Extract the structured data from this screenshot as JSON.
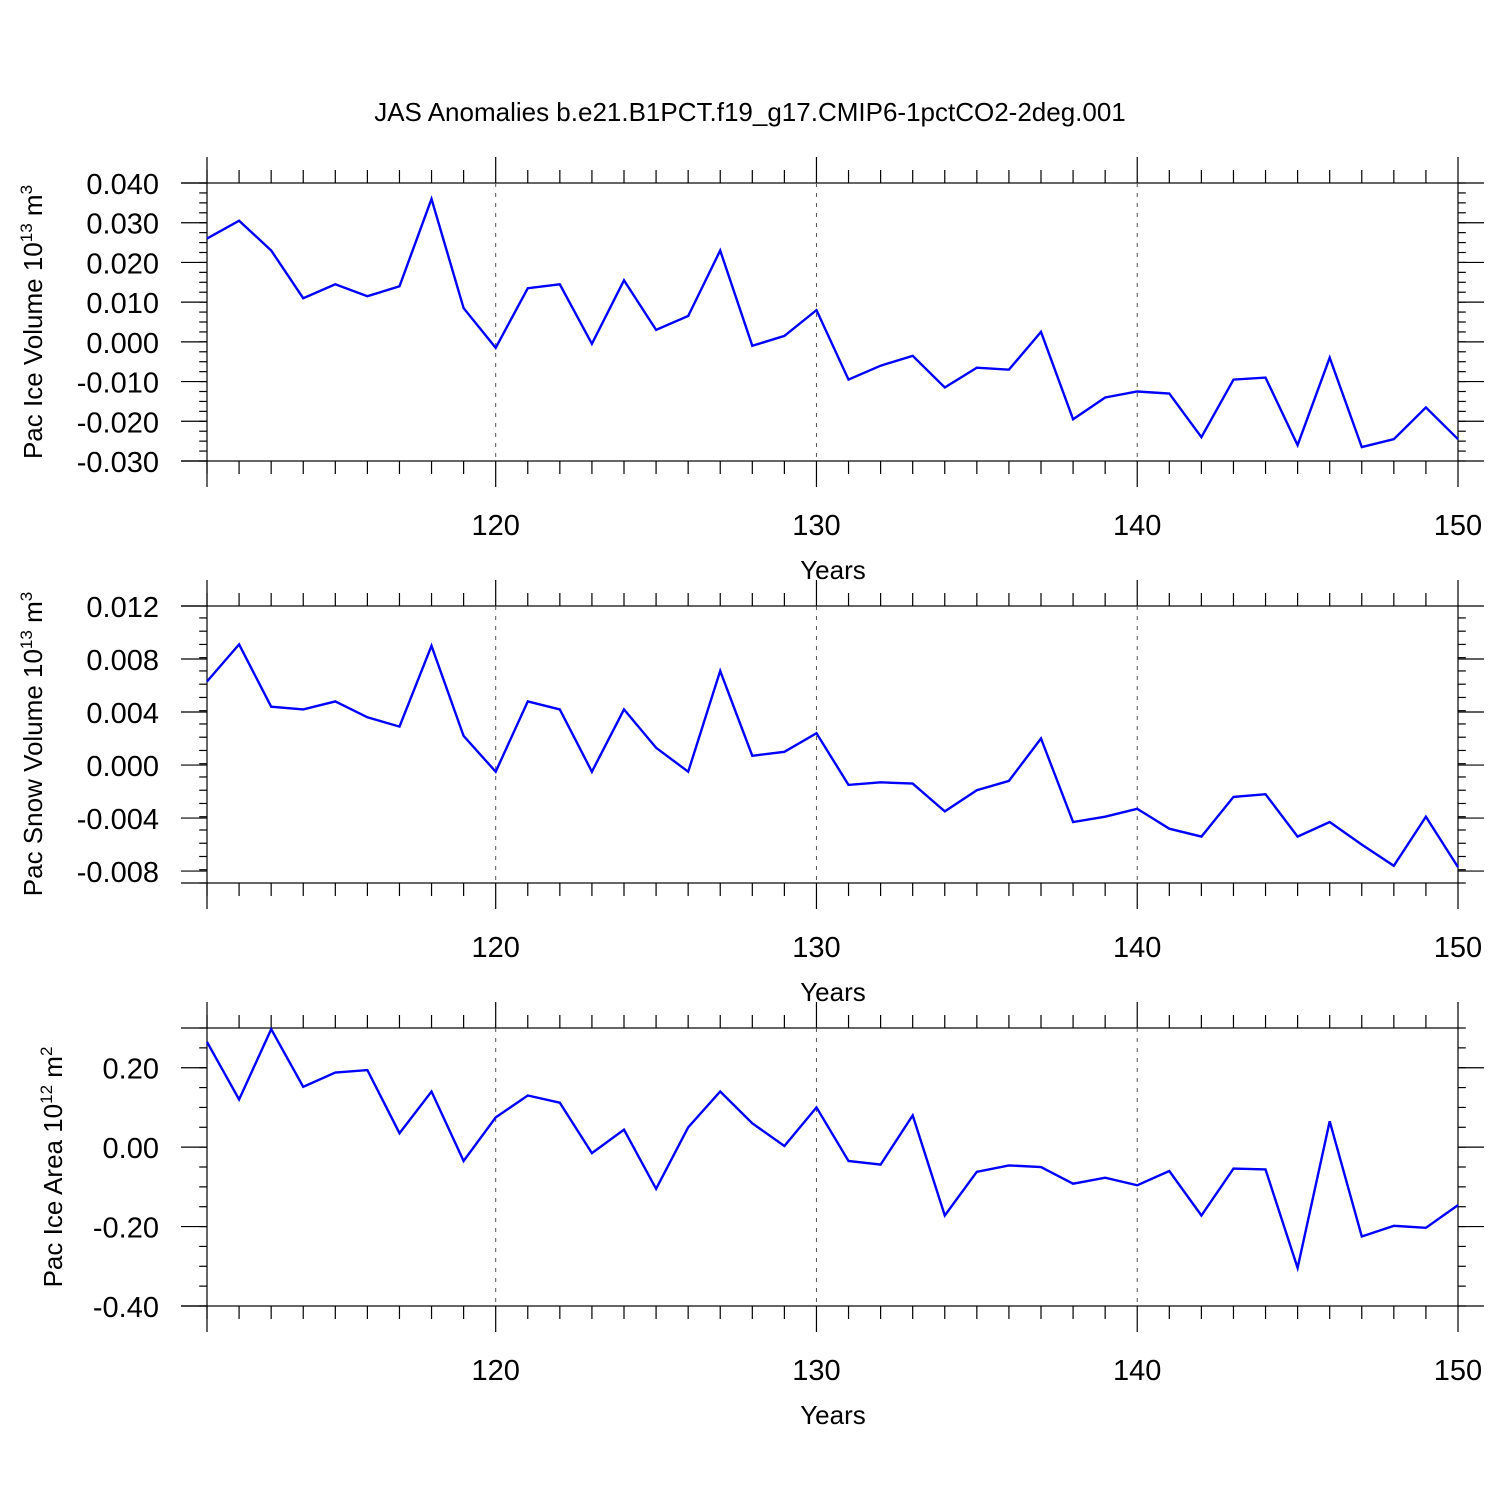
{
  "title": "JAS Anomalies b.e21.B1PCT.f19_g17.CMIP6-1pctCO2-2deg.001",
  "colors": {
    "series": "#0000ff",
    "axes": "#000000",
    "grid": "#555555"
  },
  "chart_data": [
    {
      "type": "line",
      "ylabel": "Pac Ice Volume 10",
      "ylabel_exp": "13",
      "ylabel_unit": " m",
      "ylabel_unit_exp": "3",
      "xlabel": "Years",
      "xlim": [
        111,
        150
      ],
      "ylim": [
        -0.03,
        0.04
      ],
      "yticks": [
        -0.03,
        -0.02,
        -0.01,
        0.0,
        0.01,
        0.02,
        0.03,
        0.04
      ],
      "ytick_labels": [
        "-0.030",
        "-0.020",
        "-0.010",
        "0.000",
        "0.010",
        "0.020",
        "0.030",
        "0.040"
      ],
      "yminor": 0.0025,
      "xticks": [
        120,
        130,
        140,
        150
      ],
      "xtick_labels": [
        "120",
        "130",
        "140",
        "150"
      ],
      "xminor_step": 1,
      "grid": "vertical dashed at major x ticks",
      "x": [
        111,
        112,
        113,
        114,
        115,
        116,
        117,
        118,
        119,
        120,
        121,
        122,
        123,
        124,
        125,
        126,
        127,
        128,
        129,
        130,
        131,
        132,
        133,
        134,
        135,
        136,
        137,
        138,
        139,
        140,
        141,
        142,
        143,
        144,
        145,
        146,
        147,
        148,
        149,
        150
      ],
      "values": [
        0.026,
        0.0305,
        0.023,
        0.011,
        0.0145,
        0.0115,
        0.014,
        0.036,
        0.0085,
        -0.0015,
        0.0135,
        0.0145,
        -0.0005,
        0.0155,
        0.003,
        0.0065,
        0.023,
        -0.001,
        0.0015,
        0.008,
        -0.0095,
        -0.006,
        -0.0035,
        -0.0115,
        -0.0065,
        -0.007,
        0.0025,
        -0.0195,
        -0.014,
        -0.0125,
        -0.013,
        -0.024,
        -0.0095,
        -0.009,
        -0.026,
        -0.004,
        -0.0265,
        -0.0245,
        -0.0165,
        -0.0245
      ]
    },
    {
      "type": "line",
      "ylabel": "Pac Snow Volume 10",
      "ylabel_exp": "13",
      "ylabel_unit": " m",
      "ylabel_unit_exp": "3",
      "xlabel": "Years",
      "xlim": [
        111,
        150
      ],
      "ylim": [
        -0.0089,
        0.012
      ],
      "yticks": [
        -0.008,
        -0.004,
        0.0,
        0.004,
        0.008,
        0.012
      ],
      "ytick_labels": [
        "-0.008",
        "-0.004",
        "0.000",
        "0.004",
        "0.008",
        "0.012"
      ],
      "yminor": 0.001,
      "xticks": [
        120,
        130,
        140,
        150
      ],
      "xtick_labels": [
        "120",
        "130",
        "140",
        "150"
      ],
      "xminor_step": 1,
      "grid": "vertical dashed at major x ticks",
      "x": [
        111,
        112,
        113,
        114,
        115,
        116,
        117,
        118,
        119,
        120,
        121,
        122,
        123,
        124,
        125,
        126,
        127,
        128,
        129,
        130,
        131,
        132,
        133,
        134,
        135,
        136,
        137,
        138,
        139,
        140,
        141,
        142,
        143,
        144,
        145,
        146,
        147,
        148,
        149,
        150
      ],
      "values": [
        0.0063,
        0.0091,
        0.0044,
        0.0042,
        0.0048,
        0.0036,
        0.0029,
        0.009,
        0.0022,
        -0.0005,
        0.0048,
        0.0042,
        -0.0005,
        0.0042,
        0.0013,
        -0.0005,
        0.0071,
        0.0007,
        0.001,
        0.0024,
        -0.0015,
        -0.0013,
        -0.0014,
        -0.0035,
        -0.0019,
        -0.0012,
        0.002,
        -0.0043,
        -0.0039,
        -0.0033,
        -0.0048,
        -0.0054,
        -0.0024,
        -0.0022,
        -0.0054,
        -0.0043,
        -0.006,
        -0.0076,
        -0.0039,
        -0.0077
      ]
    },
    {
      "type": "line",
      "ylabel": "Pac Ice Area 10",
      "ylabel_exp": "12",
      "ylabel_unit": " m",
      "ylabel_unit_exp": "2",
      "xlabel": "Years",
      "xlim": [
        111,
        150
      ],
      "ylim": [
        -0.4,
        0.3
      ],
      "yticks": [
        -0.4,
        -0.2,
        0.0,
        0.2
      ],
      "ytick_labels": [
        "-0.40",
        "-0.20",
        "0.00",
        "0.20"
      ],
      "yminor": 0.05,
      "xticks": [
        120,
        130,
        140,
        150
      ],
      "xtick_labels": [
        "120",
        "130",
        "140",
        "150"
      ],
      "xminor_step": 1,
      "grid": "vertical dashed at major x ticks",
      "x": [
        111,
        112,
        113,
        114,
        115,
        116,
        117,
        118,
        119,
        120,
        121,
        122,
        123,
        124,
        125,
        126,
        127,
        128,
        129,
        130,
        131,
        132,
        133,
        134,
        135,
        136,
        137,
        138,
        139,
        140,
        141,
        142,
        143,
        144,
        145,
        146,
        147,
        148,
        149,
        150
      ],
      "values": [
        0.265,
        0.12,
        0.297,
        0.152,
        0.188,
        0.194,
        0.035,
        0.14,
        -0.035,
        0.075,
        0.13,
        0.112,
        -0.015,
        0.044,
        -0.105,
        0.05,
        0.14,
        0.06,
        0.003,
        0.1,
        -0.035,
        -0.044,
        0.08,
        -0.172,
        -0.062,
        -0.046,
        -0.05,
        -0.092,
        -0.077,
        -0.096,
        -0.06,
        -0.172,
        -0.054,
        -0.056,
        -0.304,
        0.065,
        -0.225,
        -0.198,
        -0.203,
        -0.146
      ]
    }
  ]
}
